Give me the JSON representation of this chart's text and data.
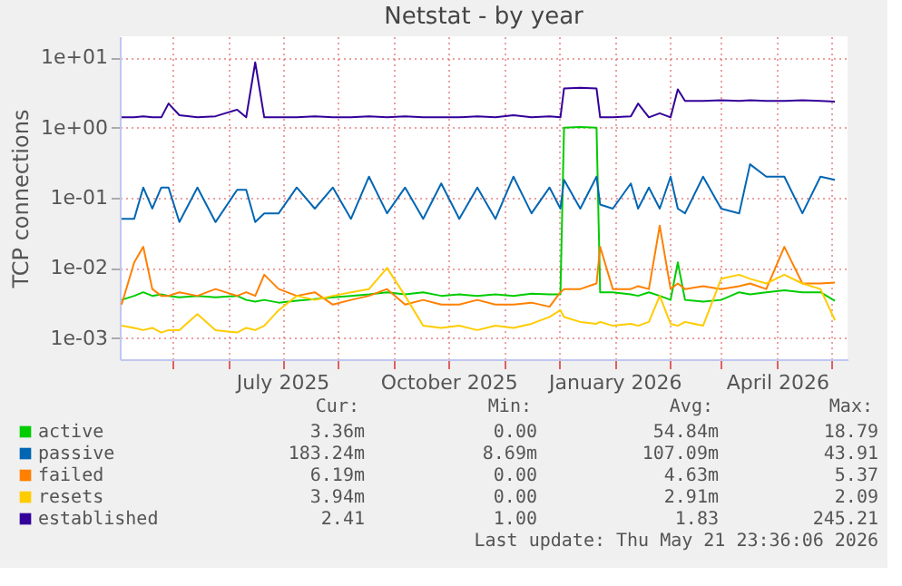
{
  "chart_data": {
    "type": "line",
    "title": "Netstat - by year",
    "ylabel": "TCP connections",
    "log": true,
    "grid": true,
    "legend": "bottom",
    "x": [
      "2025-04-03",
      "2025-04-10",
      "2025-04-15",
      "2025-04-20",
      "2025-04-25",
      "2025-04-29",
      "2025-05-05",
      "2025-05-15",
      "2025-05-25",
      "2025-06-06",
      "2025-06-11",
      "2025-06-16",
      "2025-06-21",
      "2025-06-29",
      "2025-07-09",
      "2025-07-19",
      "2025-07-29",
      "2025-08-08",
      "2025-08-18",
      "2025-08-28",
      "2025-09-07",
      "2025-09-17",
      "2025-09-27",
      "2025-10-07",
      "2025-10-17",
      "2025-10-27",
      "2025-11-06",
      "2025-11-16",
      "2025-11-26",
      "2025-12-02",
      "2025-12-04",
      "2025-12-13",
      "2025-12-22",
      "2025-12-24",
      "2025-12-31",
      "2026-01-10",
      "2026-01-14",
      "2026-01-20",
      "2026-01-26",
      "2026-02-01",
      "2026-02-05",
      "2026-02-09",
      "2026-02-19",
      "2026-03-01",
      "2026-03-11",
      "2026-03-17",
      "2026-03-26",
      "2026-04-05",
      "2026-04-15",
      "2026-04-25",
      "2026-05-03"
    ],
    "xlim": [
      "2025-04-02",
      "2026-05-10"
    ],
    "xticks": [
      {
        "value": "2025-05-01",
        "label": null
      },
      {
        "value": "2025-06-01",
        "label": null
      },
      {
        "value": "2025-07-01",
        "label": "July 2025"
      },
      {
        "value": "2025-08-01",
        "label": null
      },
      {
        "value": "2025-09-01",
        "label": null
      },
      {
        "value": "2025-10-01",
        "label": "October 2025"
      },
      {
        "value": "2025-11-01",
        "label": null
      },
      {
        "value": "2025-12-01",
        "label": null
      },
      {
        "value": "2026-01-01",
        "label": "January 2026"
      },
      {
        "value": "2026-02-01",
        "label": null
      },
      {
        "value": "2026-03-01",
        "label": null
      },
      {
        "value": "2026-04-01",
        "label": "April 2026"
      },
      {
        "value": "2026-05-01",
        "label": null
      }
    ],
    "ylim": [
      0.0005,
      20
    ],
    "yticks": [
      {
        "value": 0.001,
        "label": "1e-03"
      },
      {
        "value": 0.01,
        "label": "1e-02"
      },
      {
        "value": 0.1,
        "label": "1e-01"
      },
      {
        "value": 1,
        "label": "1e+00"
      },
      {
        "value": 10,
        "label": "1e+01"
      }
    ],
    "series": [
      {
        "name": "active",
        "color": "#00cc00",
        "values": [
          0.0035,
          0.004,
          0.0045,
          0.004,
          0.0042,
          0.004,
          0.0038,
          0.004,
          0.0038,
          0.004,
          0.0035,
          0.0033,
          0.0035,
          0.0032,
          0.0034,
          0.0036,
          0.0038,
          0.004,
          0.0042,
          0.0045,
          0.0042,
          0.0045,
          0.004,
          0.0042,
          0.004,
          0.0042,
          0.004,
          0.0043,
          0.0042,
          0.0042,
          1.0,
          1.02,
          1.0,
          0.0045,
          0.0045,
          0.0042,
          0.004,
          0.0045,
          0.004,
          0.0035,
          0.012,
          0.0035,
          0.0033,
          0.0035,
          0.0045,
          0.0042,
          0.0045,
          0.0048,
          0.0045,
          0.0045,
          0.0034
        ]
      },
      {
        "name": "passive",
        "color": "#0066b3",
        "values": [
          0.05,
          0.05,
          0.14,
          0.07,
          0.14,
          0.14,
          0.045,
          0.14,
          0.045,
          0.13,
          0.13,
          0.045,
          0.06,
          0.06,
          0.14,
          0.07,
          0.14,
          0.05,
          0.2,
          0.06,
          0.14,
          0.05,
          0.16,
          0.05,
          0.14,
          0.05,
          0.2,
          0.06,
          0.14,
          0.07,
          0.18,
          0.07,
          0.2,
          0.08,
          0.07,
          0.16,
          0.07,
          0.14,
          0.07,
          0.2,
          0.07,
          0.06,
          0.2,
          0.07,
          0.06,
          0.3,
          0.2,
          0.2,
          0.06,
          0.2,
          0.18
        ]
      },
      {
        "name": "failed",
        "color": "#ff8000",
        "values": [
          0.003,
          0.012,
          0.02,
          0.005,
          0.004,
          0.004,
          0.0045,
          0.004,
          0.005,
          0.004,
          0.0045,
          0.004,
          0.008,
          0.005,
          0.004,
          0.0045,
          0.003,
          0.0035,
          0.004,
          0.005,
          0.003,
          0.0035,
          0.003,
          0.003,
          0.0035,
          0.003,
          0.003,
          0.0032,
          0.0028,
          0.0045,
          0.005,
          0.005,
          0.006,
          0.02,
          0.005,
          0.005,
          0.0055,
          0.005,
          0.04,
          0.005,
          0.006,
          0.005,
          0.0055,
          0.005,
          0.0055,
          0.006,
          0.005,
          0.02,
          0.006,
          0.006,
          0.0062
        ]
      },
      {
        "name": "resets",
        "color": "#ffcc00",
        "values": [
          0.0015,
          0.0014,
          0.0013,
          0.0014,
          0.0012,
          0.0013,
          0.0013,
          0.0022,
          0.0013,
          0.0012,
          0.0014,
          0.0013,
          0.0015,
          0.0025,
          0.004,
          0.0035,
          0.004,
          0.0045,
          0.005,
          0.01,
          0.004,
          0.0015,
          0.0014,
          0.0015,
          0.0013,
          0.0015,
          0.0014,
          0.0016,
          0.002,
          0.0025,
          0.002,
          0.0017,
          0.0016,
          0.0017,
          0.0015,
          0.0016,
          0.0015,
          0.0017,
          0.004,
          0.0016,
          0.0015,
          0.0017,
          0.0015,
          0.007,
          0.008,
          0.007,
          0.006,
          0.008,
          0.006,
          0.005,
          0.0018
        ]
      },
      {
        "name": "established",
        "color": "#330099",
        "values": [
          1.4,
          1.4,
          1.45,
          1.4,
          1.4,
          2.2,
          1.5,
          1.4,
          1.45,
          1.8,
          1.4,
          8.5,
          1.4,
          1.4,
          1.4,
          1.45,
          1.4,
          1.4,
          1.45,
          1.4,
          1.45,
          1.4,
          1.4,
          1.4,
          1.45,
          1.4,
          1.5,
          1.4,
          1.45,
          1.4,
          3.6,
          3.7,
          3.6,
          1.4,
          1.4,
          1.45,
          2.2,
          1.4,
          1.6,
          1.4,
          3.5,
          2.4,
          2.4,
          2.45,
          2.4,
          2.45,
          2.4,
          2.4,
          2.45,
          2.4,
          2.35
        ]
      }
    ],
    "annotations": [
      "Cur:",
      "Min:",
      "Avg:",
      "Max:",
      "3.36m",
      "0.00",
      "54.84m",
      "18.79",
      "183.24m",
      "8.69m",
      "107.09m",
      "43.91",
      "6.19m",
      "0.00",
      "4.63m",
      "5.37",
      "3.94m",
      "0.00",
      "2.91m",
      "2.09",
      "2.41",
      "1.00",
      "1.83",
      "245.21",
      "Last update: Thu May 21 23:36:06 2026"
    ]
  }
}
